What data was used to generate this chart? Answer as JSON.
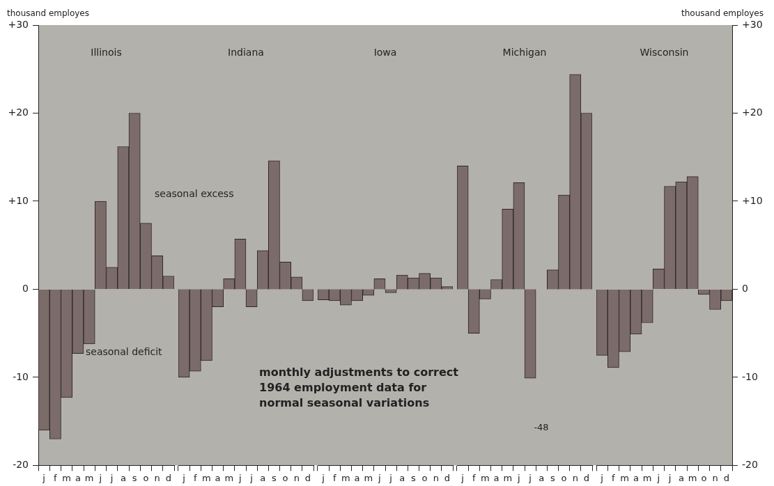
{
  "chart_data": [
    {
      "type": "bar",
      "title": "Illinois",
      "ylabel": "thousand employes",
      "categories": [
        "j",
        "f",
        "m",
        "a",
        "m",
        "j",
        "j",
        "a",
        "s",
        "o",
        "n",
        "d"
      ],
      "series": [
        {
          "color": "#7b6c6a",
          "values": [
            -16,
            -17,
            -12.3,
            -7.3,
            -6.2,
            10,
            2.5,
            16.2,
            20,
            7.5,
            3.8,
            1.5
          ]
        }
      ],
      "ylim": [
        -20,
        30
      ],
      "yticks": [
        {
          "value": 30,
          "label": "+30"
        },
        {
          "value": 20,
          "label": "+20"
        },
        {
          "value": 10,
          "label": "+10"
        },
        0,
        -10,
        -20
      ],
      "annotations": [
        "seasonal excess",
        "seasonal deficit"
      ]
    },
    {
      "type": "bar",
      "title": "Indiana",
      "categories": [
        "j",
        "f",
        "m",
        "a",
        "m",
        "j",
        "j",
        "a",
        "s",
        "o",
        "n",
        "d"
      ],
      "series": [
        {
          "color": "#7b6c6a",
          "values": [
            -10,
            -9.3,
            -8.1,
            -2,
            1.2,
            5.7,
            -2,
            4.4,
            14.6,
            3.1,
            1.4,
            -1.3
          ]
        }
      ],
      "ylim": [
        -20,
        30
      ],
      "tick_labels": "x",
      "annotations": [
        "monthly adjustments to correct\n1964 employment data for\nnormal seasonal variations"
      ]
    },
    {
      "type": "bar",
      "title": "Iowa",
      "categories": [
        "j",
        "f",
        "m",
        "a",
        "m",
        "j",
        "j",
        "a",
        "s",
        "o",
        "n",
        "d"
      ],
      "series": [
        {
          "color": "#7b6c6a",
          "values": [
            -1.2,
            -1.3,
            -1.8,
            -1.3,
            -0.7,
            1.2,
            -0.4,
            1.6,
            1.3,
            1.8,
            1.3,
            0.3
          ]
        }
      ],
      "ylim": [
        -20,
        30
      ],
      "tick_labels": "x"
    },
    {
      "type": "bar",
      "title": "Michigan",
      "categories": [
        "j",
        "f",
        "m",
        "a",
        "m",
        "j",
        "j",
        "a",
        "s",
        "o",
        "n",
        "d"
      ],
      "series": [
        {
          "color": "#7b6c6a",
          "values": [
            14,
            -5,
            -1.1,
            1.1,
            9.1,
            12.1,
            -10.1,
            null,
            2.2,
            10.7,
            24.4,
            20
          ]
        }
      ],
      "ylim": [
        -20,
        30
      ],
      "tick_labels": "x",
      "annotations": [
        "-48"
      ]
    },
    {
      "type": "bar",
      "title": "Wisconsin",
      "y2label": "thousand employes",
      "categories": [
        "j",
        "f",
        "m",
        "a",
        "m",
        "j",
        "j",
        "a",
        "m",
        "o",
        "n",
        "d"
      ],
      "series": [
        {
          "color": "#7b6c6a",
          "axis": "y2",
          "values": [
            -7.5,
            -8.9,
            -7.1,
            -5.1,
            -3.8,
            2.3,
            11.7,
            12.2,
            12.8,
            -0.6,
            -2.3,
            -1.3
          ]
        }
      ],
      "y2lim": [
        -20,
        30
      ],
      "y2ticks": [
        {
          "value": 30,
          "label": "+30"
        },
        {
          "value": 20,
          "label": "+20"
        },
        {
          "value": 10,
          "label": "+10"
        },
        0,
        -10,
        -20
      ]
    }
  ]
}
